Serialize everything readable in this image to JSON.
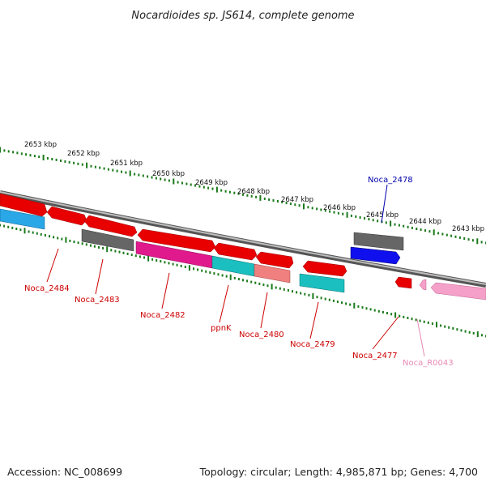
{
  "title": "Nocardioides sp. JS614, complete genome",
  "footer": {
    "accession": "Accession: NC_008699",
    "summary": "Topology: circular; Length: 4,985,871 bp; Genes: 4,700"
  },
  "kbp_labels": [
    "2653 kbp",
    "2652 kbp",
    "2651 kbp",
    "2650 kbp",
    "2649 kbp",
    "2648 kbp",
    "2647 kbp",
    "2646 kbp",
    "2645 kbp",
    "2644 kbp",
    "2643 kbp"
  ],
  "gene_labels": [
    {
      "name": "Noca_2484",
      "color": "#cc0000"
    },
    {
      "name": "Noca_2483",
      "color": "#cc0000"
    },
    {
      "name": "Noca_2482",
      "color": "#cc0000"
    },
    {
      "name": "ppnK",
      "color": "#cc0000"
    },
    {
      "name": "Noca_2480",
      "color": "#cc0000"
    },
    {
      "name": "Noca_2479",
      "color": "#cc0000"
    },
    {
      "name": "Noca_2478",
      "color": "#0000aa"
    },
    {
      "name": "Noca_2477",
      "color": "#cc0000"
    },
    {
      "name": "Noca_R0043",
      "color": "#e98bb5"
    }
  ],
  "colors": {
    "red": "#e80000",
    "grey": "#666666",
    "magenta": "#e0198c",
    "cyan": "#1bbfbf",
    "salmon": "#f08080",
    "blue": "#1010ee",
    "skyblue": "#2aa7e6",
    "pink": "#f4a0c8",
    "tick": "#1a7a1a"
  }
}
